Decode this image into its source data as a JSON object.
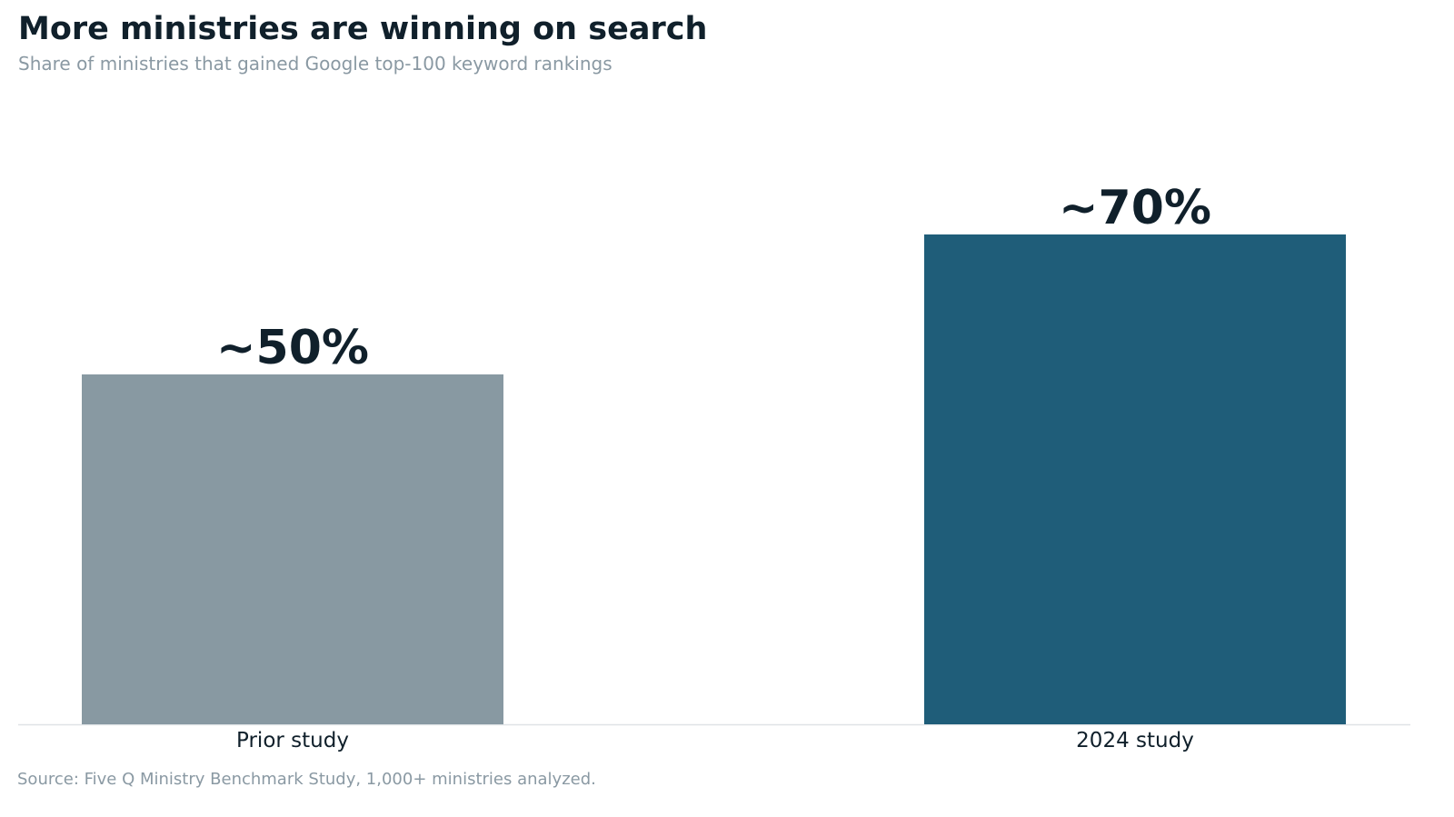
{
  "title": "More ministries are winning on search",
  "subtitle": "Share of ministries that gained Google top-100 keyword rankings",
  "source": "Source: Five Q Ministry Benchmark Study, 1,000+ ministries analyzed.",
  "colors": {
    "prior": "#8899a2",
    "current": "#1f5d79",
    "label": "#10202b",
    "axis": "#dfe3e6"
  },
  "chart_data": {
    "type": "bar",
    "categories": [
      "Prior study",
      "2024 study"
    ],
    "values": [
      50,
      70
    ],
    "value_labels": [
      "~50%",
      "~70%"
    ],
    "title": "More ministries are winning on search",
    "subtitle": "Share of ministries that gained Google top-100 keyword rankings",
    "ylim": [
      0,
      100
    ],
    "grid": false,
    "legend": "none"
  }
}
